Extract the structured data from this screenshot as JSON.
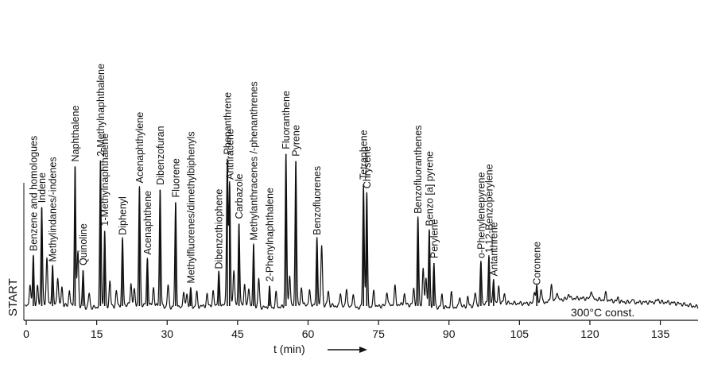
{
  "chart_data": {
    "type": "line",
    "xlabel": "t (min)",
    "y_side_label": "START",
    "note": "300°C const.",
    "xlim": [
      0,
      140
    ],
    "ylim": [
      0,
      1
    ],
    "x_ticks": [
      0,
      15,
      30,
      45,
      60,
      75,
      90,
      105,
      120,
      135
    ],
    "grid": false,
    "peaks": [
      {
        "t": 1.5,
        "h": 0.28,
        "label": "Benzene and homologues"
      },
      {
        "t": 3.3,
        "h": 0.55,
        "label": "Indene"
      },
      {
        "t": 5.6,
        "h": 0.22,
        "label": "Methylindanes/-indenes"
      },
      {
        "t": 10.4,
        "h": 0.78,
        "label": "Naphthalene"
      },
      {
        "t": 12.1,
        "h": 0.2,
        "label": "Quinoline"
      },
      {
        "t": 15.8,
        "h": 0.81,
        "label": "2-Methylnaphthalene"
      },
      {
        "t": 16.7,
        "h": 0.42,
        "label": "1-Methylnaphthalene"
      },
      {
        "t": 20.5,
        "h": 0.37,
        "label": "Diphenyl"
      },
      {
        "t": 24.1,
        "h": 0.66,
        "label": "Acenaphthylene"
      },
      {
        "t": 25.8,
        "h": 0.26,
        "label": "Acenaphthene"
      },
      {
        "t": 28.5,
        "h": 0.65,
        "label": "Dibenzofuran"
      },
      {
        "t": 31.8,
        "h": 0.58,
        "label": "Fluorene"
      },
      {
        "t": 35.0,
        "h": 0.1,
        "label": "Methylfluorenes/dimethylbiphenyls"
      },
      {
        "t": 41.0,
        "h": 0.18,
        "label": "Dibenzothiophene"
      },
      {
        "t": 42.8,
        "h": 0.82,
        "label": "Phenanthrene"
      },
      {
        "t": 43.3,
        "h": 0.68,
        "label": "Anthracene"
      },
      {
        "t": 45.3,
        "h": 0.46,
        "label": "Carbazole"
      },
      {
        "t": 48.4,
        "h": 0.34,
        "label": "Methylanthracenes /-phenanthrenes"
      },
      {
        "t": 51.8,
        "h": 0.11,
        "label": "2-Phenylnaphthalene"
      },
      {
        "t": 55.3,
        "h": 0.85,
        "label": "Fluoranthene"
      },
      {
        "t": 57.4,
        "h": 0.81,
        "label": "Pyrene"
      },
      {
        "t": 61.9,
        "h": 0.37,
        "label": "Benzofluorenes"
      },
      {
        "t": 71.8,
        "h": 0.68,
        "label": "Tetraphene"
      },
      {
        "t": 72.5,
        "h": 0.63,
        "label": "Chrysene"
      },
      {
        "t": 83.4,
        "h": 0.49,
        "label": "Benzofluoranthenes"
      },
      {
        "t": 85.8,
        "h": 0.42,
        "label": "Benzo [a] pyrene"
      },
      {
        "t": 86.8,
        "h": 0.24,
        "label": "Perylene"
      },
      {
        "t": 96.8,
        "h": 0.24,
        "label": "o-Phenylenepyrene"
      },
      {
        "t": 98.5,
        "h": 0.27,
        "label": "1,12-Benzoperylene"
      },
      {
        "t": 99.5,
        "h": 0.14,
        "label": "Antanthrene"
      },
      {
        "t": 108.7,
        "h": 0.09,
        "label": "Coronene"
      }
    ],
    "minor_peaks": [
      {
        "t": 0.8,
        "h": 0.12
      },
      {
        "t": 2.4,
        "h": 0.1
      },
      {
        "t": 4.4,
        "h": 0.26
      },
      {
        "t": 6.7,
        "h": 0.16
      },
      {
        "t": 7.6,
        "h": 0.1
      },
      {
        "t": 9.2,
        "h": 0.09
      },
      {
        "t": 11.0,
        "h": 0.3
      },
      {
        "t": 13.4,
        "h": 0.08
      },
      {
        "t": 17.8,
        "h": 0.14
      },
      {
        "t": 19.2,
        "h": 0.08
      },
      {
        "t": 22.3,
        "h": 0.12
      },
      {
        "t": 23.0,
        "h": 0.08
      },
      {
        "t": 27.1,
        "h": 0.1
      },
      {
        "t": 30.2,
        "h": 0.12
      },
      {
        "t": 33.5,
        "h": 0.09
      },
      {
        "t": 34.2,
        "h": 0.08
      },
      {
        "t": 36.3,
        "h": 0.08
      },
      {
        "t": 38.5,
        "h": 0.06
      },
      {
        "t": 39.8,
        "h": 0.07
      },
      {
        "t": 44.2,
        "h": 0.2
      },
      {
        "t": 46.5,
        "h": 0.12
      },
      {
        "t": 47.4,
        "h": 0.1
      },
      {
        "t": 49.5,
        "h": 0.16
      },
      {
        "t": 53.2,
        "h": 0.08
      },
      {
        "t": 56.1,
        "h": 0.18
      },
      {
        "t": 58.6,
        "h": 0.1
      },
      {
        "t": 60.3,
        "h": 0.08
      },
      {
        "t": 62.9,
        "h": 0.33
      },
      {
        "t": 64.3,
        "h": 0.08
      },
      {
        "t": 66.9,
        "h": 0.08
      },
      {
        "t": 68.2,
        "h": 0.11
      },
      {
        "t": 69.6,
        "h": 0.08
      },
      {
        "t": 74.0,
        "h": 0.09
      },
      {
        "t": 76.8,
        "h": 0.08
      },
      {
        "t": 78.5,
        "h": 0.1
      },
      {
        "t": 80.5,
        "h": 0.06
      },
      {
        "t": 82.5,
        "h": 0.09
      },
      {
        "t": 84.5,
        "h": 0.2
      },
      {
        "t": 85.1,
        "h": 0.16
      },
      {
        "t": 88.5,
        "h": 0.07
      },
      {
        "t": 90.5,
        "h": 0.08
      },
      {
        "t": 92.3,
        "h": 0.06
      },
      {
        "t": 94.0,
        "h": 0.05
      },
      {
        "t": 95.6,
        "h": 0.07
      },
      {
        "t": 100.6,
        "h": 0.09
      },
      {
        "t": 101.8,
        "h": 0.05
      },
      {
        "t": 108.2,
        "h": 0.07
      },
      {
        "t": 109.6,
        "h": 0.08
      },
      {
        "t": 111.8,
        "h": 0.1
      },
      {
        "t": 113.0,
        "h": 0.05
      },
      {
        "t": 115.5,
        "h": 0.03
      },
      {
        "t": 120.3,
        "h": 0.05
      },
      {
        "t": 123.4,
        "h": 0.04
      },
      {
        "t": 126.0,
        "h": 0.02
      },
      {
        "t": 129.0,
        "h": 0.02
      },
      {
        "t": 134.5,
        "h": 0.02
      }
    ]
  }
}
